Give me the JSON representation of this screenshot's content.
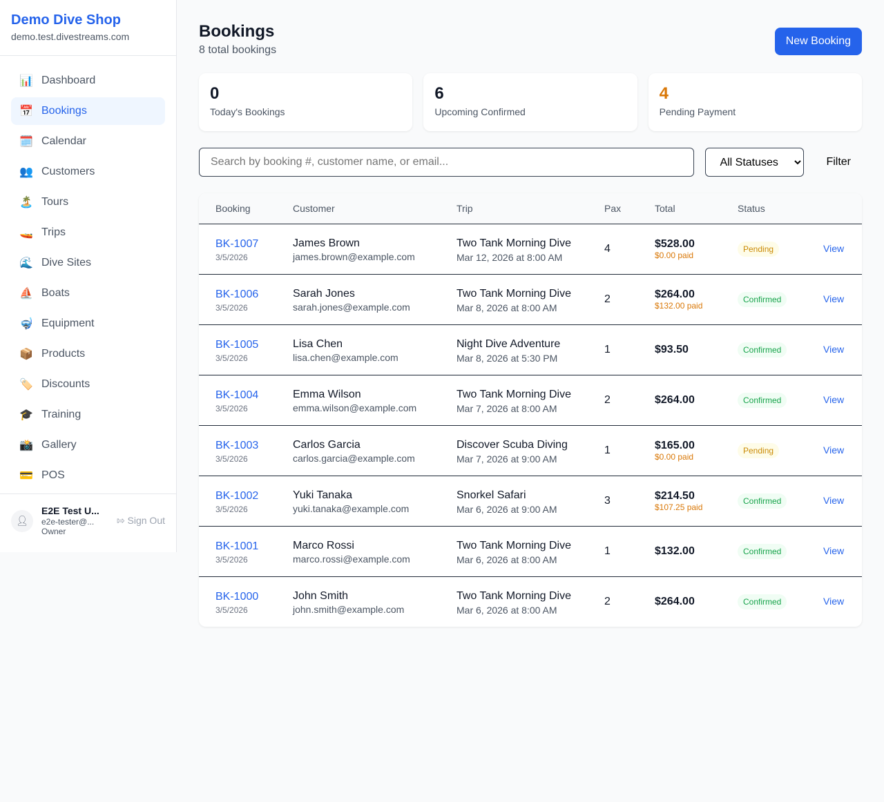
{
  "sidebar": {
    "shop_name": "Demo Dive Shop",
    "domain": "demo.test.divestreams.com",
    "items": [
      {
        "label": "Dashboard",
        "icon": "📊"
      },
      {
        "label": "Bookings",
        "icon": "📅",
        "active": true
      },
      {
        "label": "Calendar",
        "icon": "🗓️"
      },
      {
        "label": "Customers",
        "icon": "👥"
      },
      {
        "label": "Tours",
        "icon": "🏝️"
      },
      {
        "label": "Trips",
        "icon": "🚤"
      },
      {
        "label": "Dive Sites",
        "icon": "🌊"
      },
      {
        "label": "Boats",
        "icon": "⛵"
      },
      {
        "label": "Equipment",
        "icon": "🤿"
      },
      {
        "label": "Products",
        "icon": "📦"
      },
      {
        "label": "Discounts",
        "icon": "🏷️"
      },
      {
        "label": "Training",
        "icon": "🎓"
      },
      {
        "label": "Gallery",
        "icon": "📸"
      },
      {
        "label": "POS",
        "icon": "💳"
      }
    ],
    "user": {
      "name": "E2E Test U...",
      "email": "e2e-tester@...",
      "role": "Owner",
      "sign_out": "Sign Out"
    }
  },
  "header": {
    "title": "Bookings",
    "subtitle": "8 total bookings",
    "new_button": "New Booking"
  },
  "stats": [
    {
      "value": "0",
      "label": "Today's Bookings",
      "color": "#111827"
    },
    {
      "value": "6",
      "label": "Upcoming Confirmed",
      "color": "#111827"
    },
    {
      "value": "4",
      "label": "Pending Payment",
      "color": "#d97706"
    }
  ],
  "filters": {
    "search_placeholder": "Search by booking #, customer name, or email...",
    "status_selected": "All Statuses",
    "filter_label": "Filter"
  },
  "table": {
    "headers": [
      "Booking",
      "Customer",
      "Trip",
      "Pax",
      "Total",
      "Status",
      ""
    ],
    "rows": [
      {
        "id": "BK-1007",
        "date": "3/5/2026",
        "customer": "James Brown",
        "email": "james.brown@example.com",
        "trip": "Two Tank Morning Dive",
        "trip_date": "Mar 12, 2026 at 8:00 AM",
        "pax": "4",
        "total": "$528.00",
        "paid": "$0.00 paid",
        "status": "Pending",
        "action": "View"
      },
      {
        "id": "BK-1006",
        "date": "3/5/2026",
        "customer": "Sarah Jones",
        "email": "sarah.jones@example.com",
        "trip": "Two Tank Morning Dive",
        "trip_date": "Mar 8, 2026 at 8:00 AM",
        "pax": "2",
        "total": "$264.00",
        "paid": "$132.00 paid",
        "status": "Confirmed",
        "action": "View"
      },
      {
        "id": "BK-1005",
        "date": "3/5/2026",
        "customer": "Lisa Chen",
        "email": "lisa.chen@example.com",
        "trip": "Night Dive Adventure",
        "trip_date": "Mar 8, 2026 at 5:30 PM",
        "pax": "1",
        "total": "$93.50",
        "paid": null,
        "status": "Confirmed",
        "action": "View"
      },
      {
        "id": "BK-1004",
        "date": "3/5/2026",
        "customer": "Emma Wilson",
        "email": "emma.wilson@example.com",
        "trip": "Two Tank Morning Dive",
        "trip_date": "Mar 7, 2026 at 8:00 AM",
        "pax": "2",
        "total": "$264.00",
        "paid": null,
        "status": "Confirmed",
        "action": "View"
      },
      {
        "id": "BK-1003",
        "date": "3/5/2026",
        "customer": "Carlos Garcia",
        "email": "carlos.garcia@example.com",
        "trip": "Discover Scuba Diving",
        "trip_date": "Mar 7, 2026 at 9:00 AM",
        "pax": "1",
        "total": "$165.00",
        "paid": "$0.00 paid",
        "status": "Pending",
        "action": "View"
      },
      {
        "id": "BK-1002",
        "date": "3/5/2026",
        "customer": "Yuki Tanaka",
        "email": "yuki.tanaka@example.com",
        "trip": "Snorkel Safari",
        "trip_date": "Mar 6, 2026 at 9:00 AM",
        "pax": "3",
        "total": "$214.50",
        "paid": "$107.25 paid",
        "status": "Confirmed",
        "action": "View"
      },
      {
        "id": "BK-1001",
        "date": "3/5/2026",
        "customer": "Marco Rossi",
        "email": "marco.rossi@example.com",
        "trip": "Two Tank Morning Dive",
        "trip_date": "Mar 6, 2026 at 8:00 AM",
        "pax": "1",
        "total": "$132.00",
        "paid": null,
        "status": "Confirmed",
        "action": "View"
      },
      {
        "id": "BK-1000",
        "date": "3/5/2026",
        "customer": "John Smith",
        "email": "john.smith@example.com",
        "trip": "Two Tank Morning Dive",
        "trip_date": "Mar 6, 2026 at 8:00 AM",
        "pax": "2",
        "total": "$264.00",
        "paid": null,
        "status": "Confirmed",
        "action": "View"
      }
    ]
  }
}
